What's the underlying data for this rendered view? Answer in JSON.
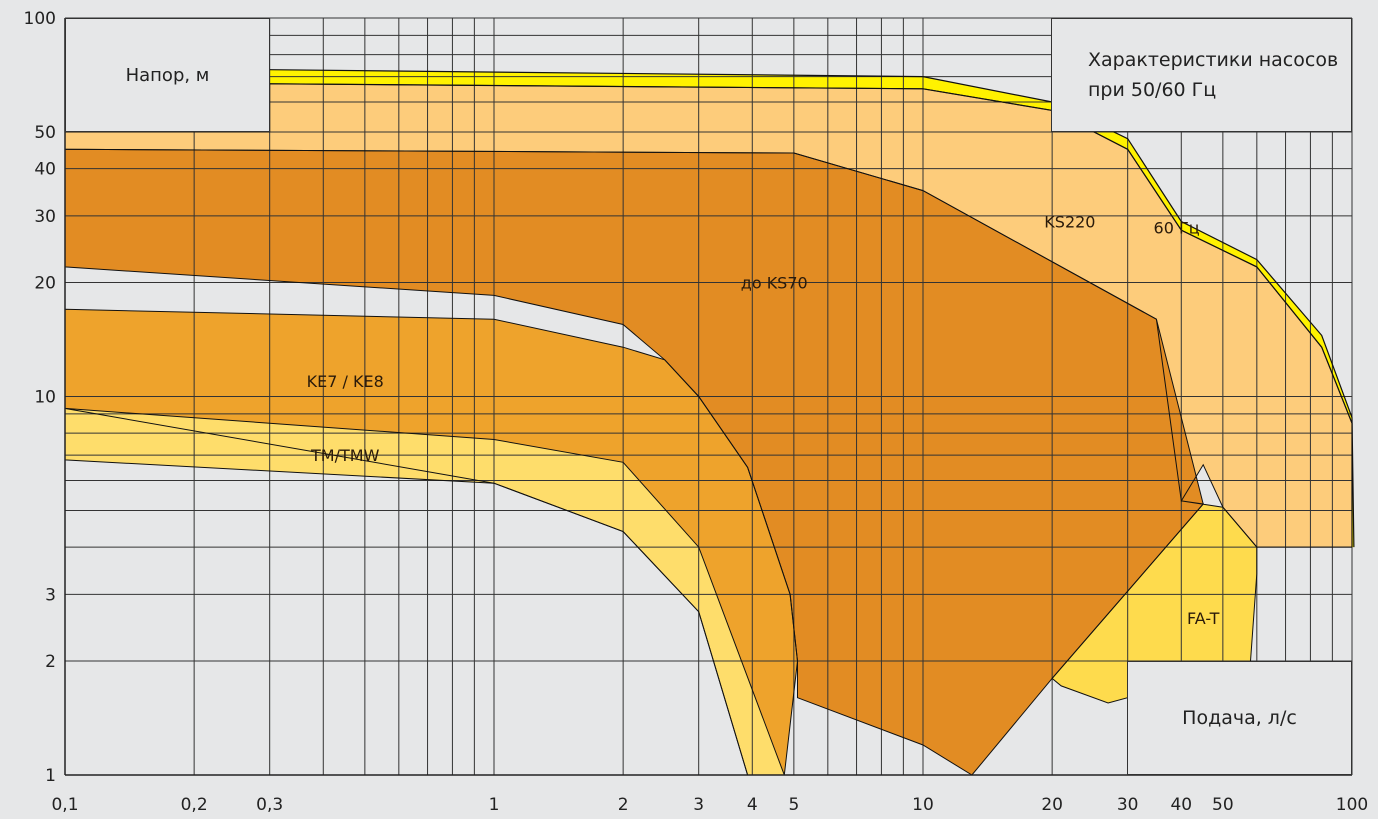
{
  "ylabel": "Напор, м",
  "xlabel": "Подача, л/с",
  "title": "Характеристики насосов при 50/60 Гц",
  "chart_data": {
    "type": "area",
    "title": "Характеристики насосов при 50/60 Гц",
    "xlabel": "Подача, л/с",
    "ylabel": "Напор, м",
    "xscale": "log",
    "yscale": "log",
    "xlim": [
      0.1,
      100
    ],
    "ylim": [
      1,
      100
    ],
    "xticks": [
      {
        "v": 0.1,
        "label": "0,1"
      },
      {
        "v": 0.2,
        "label": "0,2"
      },
      {
        "v": 0.3,
        "label": "0,3"
      },
      {
        "v": 1,
        "label": "1"
      },
      {
        "v": 2,
        "label": "2"
      },
      {
        "v": 3,
        "label": "3"
      },
      {
        "v": 4,
        "label": "4"
      },
      {
        "v": 5,
        "label": "5"
      },
      {
        "v": 10,
        "label": "10"
      },
      {
        "v": 20,
        "label": "20"
      },
      {
        "v": 30,
        "label": "30"
      },
      {
        "v": 40,
        "label": "40"
      },
      {
        "v": 50,
        "label": "50"
      },
      {
        "v": 100,
        "label": "100"
      }
    ],
    "yticks": [
      {
        "v": 1,
        "label": "1"
      },
      {
        "v": 2,
        "label": "2"
      },
      {
        "v": 3,
        "label": "3"
      },
      {
        "v": 10,
        "label": "10"
      },
      {
        "v": 20,
        "label": "20"
      },
      {
        "v": 30,
        "label": "30"
      },
      {
        "v": 40,
        "label": "40"
      },
      {
        "v": 50,
        "label": "50"
      },
      {
        "v": 100,
        "label": "100"
      }
    ],
    "grid": true,
    "series": [
      {
        "name": "60 Гц",
        "color": "#fff200",
        "outer": [
          [
            0.3,
            73
          ],
          [
            10,
            70
          ],
          [
            20,
            60
          ],
          [
            30,
            48
          ],
          [
            40,
            29
          ],
          [
            60,
            23
          ],
          [
            85,
            14.5
          ],
          [
            100,
            8.8
          ],
          [
            101,
            4
          ]
        ],
        "inner": [
          [
            0.3,
            67
          ],
          [
            10,
            65
          ],
          [
            20,
            57
          ],
          [
            30,
            45
          ],
          [
            40,
            27.5
          ],
          [
            60,
            22
          ],
          [
            85,
            13.5
          ],
          [
            100,
            8.5
          ],
          [
            100,
            4
          ]
        ]
      },
      {
        "name": "KS220",
        "color": "#fdcc7b",
        "points": [
          [
            0.1,
            50
          ],
          [
            0.3,
            50
          ],
          [
            0.3,
            67
          ],
          [
            10,
            65
          ],
          [
            20,
            57
          ],
          [
            30,
            45
          ],
          [
            40,
            27.5
          ],
          [
            60,
            22
          ],
          [
            85,
            13.5
          ],
          [
            100,
            8.5
          ],
          [
            100,
            4
          ],
          [
            60,
            4
          ],
          [
            50,
            5.1
          ],
          [
            45,
            6.6
          ],
          [
            40,
            5.3
          ],
          [
            35,
            16
          ],
          [
            10,
            35
          ],
          [
            5,
            44
          ],
          [
            0.1,
            45
          ]
        ]
      },
      {
        "name": "FA-T",
        "color": "#fedb4d",
        "points": [
          [
            40,
            5.3
          ],
          [
            50,
            5.1
          ],
          [
            60,
            4
          ],
          [
            60,
            3.4
          ],
          [
            58,
            2.0
          ],
          [
            48,
            1.85
          ],
          [
            27,
            1.55
          ],
          [
            21,
            1.72
          ],
          [
            20,
            1.8
          ],
          [
            45,
            5.2
          ]
        ]
      },
      {
        "name": "до KS70",
        "color": "#e28c23",
        "points": [
          [
            0.1,
            45
          ],
          [
            5,
            44
          ],
          [
            10,
            35
          ],
          [
            35,
            16
          ],
          [
            45,
            5.2
          ],
          [
            20,
            1.8
          ],
          [
            13,
            1.0
          ],
          [
            10,
            1.2
          ],
          [
            5.1,
            1.6
          ],
          [
            5.1,
            2.0
          ],
          [
            4.9,
            3.0
          ],
          [
            3.9,
            6.5
          ],
          [
            3,
            10
          ],
          [
            2.5,
            12.5
          ],
          [
            2,
            15.5
          ],
          [
            1,
            18.5
          ],
          [
            0.1,
            22
          ]
        ]
      },
      {
        "name": "KE7 / KE8",
        "color": "#eea32c",
        "points": [
          [
            0.1,
            17
          ],
          [
            1,
            16
          ],
          [
            2,
            13.5
          ],
          [
            2.5,
            12.5
          ],
          [
            3,
            10
          ],
          [
            3.9,
            6.5
          ],
          [
            4.9,
            3.0
          ],
          [
            5.1,
            2.0
          ],
          [
            4.75,
            1.0
          ],
          [
            3.9,
            1.0
          ],
          [
            3,
            2.7
          ],
          [
            2,
            4.4
          ],
          [
            1,
            5.9
          ],
          [
            0.1,
            9.3
          ]
        ]
      },
      {
        "name": "TM/TMW",
        "color": "#fedd6b",
        "points": [
          [
            0.1,
            9.3
          ],
          [
            1,
            7.7
          ],
          [
            2,
            6.7
          ],
          [
            3,
            4.0
          ],
          [
            4.75,
            1.0
          ],
          [
            3.9,
            1.0
          ],
          [
            3,
            2.7
          ],
          [
            2,
            4.4
          ],
          [
            1,
            5.9
          ],
          [
            0.1,
            6.8
          ]
        ]
      }
    ]
  }
}
